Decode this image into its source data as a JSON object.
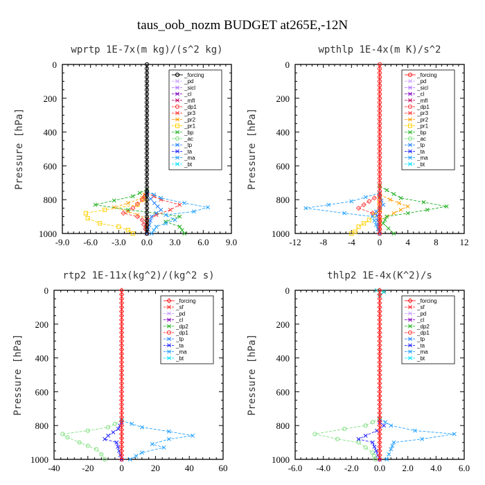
{
  "figure_title": "taus_oob_nozm  BUDGET at265E,-12N",
  "colors": {
    "forcing_black": "#000000",
    "forcing_red": "#ff2020",
    "sf": "#ff2020",
    "pd": "#c8a0ff",
    "sicl": "#b070ff",
    "cl": "#8000c0",
    "mfl": "#c00060",
    "dp1": "#ff4040",
    "pr3": "#ff3030",
    "pr2": "#ffa000",
    "pr1": "#ffd000",
    "bp": "#20b020",
    "ac": "#80e080",
    "tp": "#2080ff",
    "ta": "#2020ff",
    "ma": "#20a0ff",
    "bt": "#00e0ff",
    "dp2": "#20b020"
  },
  "chart_data": [
    {
      "id": "wprtp",
      "type": "line",
      "title": "wprtp   1E-7x(m kg)/(s^2 kg)",
      "ylabel": "Pressure [hPa]",
      "xlim": [
        -9,
        9
      ],
      "ylim": [
        1000,
        0
      ],
      "xticks": [
        "-9.0",
        "-6.0",
        "-3.0",
        "0.0",
        "3.0",
        "6.0",
        "9.0"
      ],
      "yticks": [
        "0",
        "200",
        "400",
        "600",
        "800",
        "1000"
      ],
      "legend": [
        "_forcing",
        "_pd",
        "_sicl",
        "_cl",
        "_mfl",
        "_dp1",
        "_pr3",
        "_pr2",
        "_pr1",
        "_bp",
        "_ac",
        "_tp",
        "_ta",
        "_ma",
        "_bt"
      ],
      "legend_position": "top-right",
      "series": [
        {
          "name": "_pr1",
          "color": "#ffd000",
          "marker": "square",
          "points": [
            [
              0,
              750
            ],
            [
              -0.3,
              800
            ],
            [
              -1,
              830
            ],
            [
              -4.5,
              860
            ],
            [
              -6.5,
              880
            ],
            [
              -6.3,
              910
            ],
            [
              -5,
              940
            ],
            [
              -3,
              960
            ],
            [
              -2,
              980
            ],
            [
              -1.5,
              1000
            ]
          ]
        },
        {
          "name": "_pr2",
          "color": "#ffa000",
          "marker": "x",
          "points": [
            [
              0,
              750
            ],
            [
              -0.5,
              790
            ],
            [
              -2,
              820
            ],
            [
              -3.5,
              845
            ],
            [
              -2,
              870
            ],
            [
              -1,
              890
            ],
            [
              0,
              910
            ],
            [
              0,
              1000
            ]
          ]
        },
        {
          "name": "_bp",
          "color": "#20b020",
          "marker": "x",
          "points": [
            [
              0,
              740
            ],
            [
              -1.5,
              780
            ],
            [
              -5.5,
              830
            ],
            [
              -2,
              860
            ],
            [
              1,
              880
            ],
            [
              3.5,
              900
            ],
            [
              2,
              930
            ],
            [
              3.5,
              960
            ],
            [
              4,
              1000
            ]
          ]
        },
        {
          "name": "_dp1",
          "color": "#ff4040",
          "marker": "diamond",
          "points": [
            [
              0,
              760
            ],
            [
              -0.5,
              800
            ],
            [
              -1.5,
              850
            ],
            [
              -2.5,
              880
            ],
            [
              -1,
              900
            ],
            [
              -0.5,
              920
            ],
            [
              0,
              1000
            ]
          ]
        },
        {
          "name": "_pr3",
          "color": "#ff3030",
          "marker": "x",
          "points": [
            [
              0,
              760
            ],
            [
              1.5,
              800
            ],
            [
              3.5,
              830
            ],
            [
              2.5,
              860
            ],
            [
              1,
              890
            ],
            [
              0,
              920
            ],
            [
              0,
              1000
            ]
          ]
        },
        {
          "name": "_ma",
          "color": "#20a0ff",
          "marker": "x",
          "points": [
            [
              0,
              750
            ],
            [
              1.5,
              790
            ],
            [
              4,
              820
            ],
            [
              6.5,
              845
            ],
            [
              5,
              870
            ],
            [
              2,
              890
            ],
            [
              3,
              920
            ],
            [
              1,
              960
            ],
            [
              0.5,
              1000
            ]
          ]
        },
        {
          "name": "_tp",
          "color": "#2080ff",
          "marker": "x",
          "points": [
            [
              0,
              770
            ],
            [
              0.8,
              820
            ],
            [
              1.5,
              860
            ],
            [
              0.5,
              900
            ],
            [
              0,
              1000
            ]
          ]
        },
        {
          "name": "_forcing",
          "color": "#000000",
          "marker": "circle",
          "points": [
            [
              0,
              0
            ],
            [
              0,
              1000
            ]
          ]
        }
      ]
    },
    {
      "id": "wpthlp",
      "type": "line",
      "title": "wpthlp   1E-4x(m K)/s^2",
      "ylabel": "Pressure [hPa]",
      "xlim": [
        -12,
        12
      ],
      "ylim": [
        1000,
        0
      ],
      "xticks": [
        "-12",
        "-8",
        "-4",
        "0",
        "4",
        "8",
        "12"
      ],
      "yticks": [
        "0",
        "200",
        "400",
        "600",
        "800",
        "1000"
      ],
      "legend": [
        "_forcing",
        "_pd",
        "_sicl",
        "_cl",
        "_mfl",
        "_dp1",
        "_pr3",
        "_pr2",
        "_pr1",
        "_bp",
        "_ac",
        "_tp",
        "_ta",
        "_ma",
        "_bt"
      ],
      "legend_position": "top-right",
      "series": [
        {
          "name": "_pr1",
          "color": "#ffd000",
          "marker": "square",
          "points": [
            [
              0,
              780
            ],
            [
              0,
              860
            ],
            [
              -1.5,
              920
            ],
            [
              -3,
              960
            ],
            [
              -3.5,
              990
            ],
            [
              -4,
              1000
            ]
          ]
        },
        {
          "name": "_pr2",
          "color": "#ffa000",
          "marker": "x",
          "points": [
            [
              0,
              770
            ],
            [
              1.5,
              800
            ],
            [
              4,
              840
            ],
            [
              2,
              880
            ],
            [
              0,
              920
            ],
            [
              0,
              1000
            ]
          ]
        },
        {
          "name": "_bp",
          "color": "#20b020",
          "marker": "x",
          "points": [
            [
              0,
              720
            ],
            [
              3,
              790
            ],
            [
              9.5,
              840
            ],
            [
              4,
              880
            ],
            [
              1,
              900
            ],
            [
              0.5,
              940
            ],
            [
              2,
              1000
            ]
          ]
        },
        {
          "name": "_dp1",
          "color": "#ff4040",
          "marker": "diamond",
          "points": [
            [
              0,
              770
            ],
            [
              -1.5,
              810
            ],
            [
              -3,
              850
            ],
            [
              -1,
              880
            ],
            [
              0,
              900
            ],
            [
              0,
              1000
            ]
          ]
        },
        {
          "name": "_ma",
          "color": "#20a0ff",
          "marker": "x",
          "points": [
            [
              0,
              760
            ],
            [
              -4,
              810
            ],
            [
              -10.5,
              850
            ],
            [
              -5,
              880
            ],
            [
              -1,
              900
            ],
            [
              0,
              1000
            ]
          ]
        },
        {
          "name": "_tp",
          "color": "#2080ff",
          "marker": "x",
          "points": [
            [
              0,
              780
            ],
            [
              0.5,
              830
            ],
            [
              -0.5,
              870
            ],
            [
              0,
              1000
            ]
          ]
        },
        {
          "name": "_forcing",
          "color": "#ff2020",
          "marker": "circle",
          "points": [
            [
              0,
              0
            ],
            [
              0,
              1000
            ]
          ]
        }
      ]
    },
    {
      "id": "rtp2",
      "type": "line",
      "title": "rtp2   1E-11x(kg^2)/(kg^2 s)",
      "ylabel": "Pressure [hPa]",
      "xlim": [
        -40,
        60
      ],
      "ylim": [
        1000,
        0
      ],
      "xticks": [
        "-40",
        "-20",
        "0",
        "20",
        "40",
        "60"
      ],
      "yticks": [
        "0",
        "200",
        "400",
        "600",
        "800",
        "1000"
      ],
      "legend": [
        "_forcing",
        "_sf",
        "_pd",
        "_cl",
        "_dp2",
        "_dp1",
        "_tp",
        "_ta",
        "_ma",
        "_bt"
      ],
      "legend_position": "top-right",
      "series": [
        {
          "name": "_dp1",
          "color": "#80e080",
          "marker": "circle",
          "points": [
            [
              0,
              770
            ],
            [
              -8,
              810
            ],
            [
              -20,
              830
            ],
            [
              -35,
              850
            ],
            [
              -32,
              870
            ],
            [
              -25,
              900
            ],
            [
              -15,
              940
            ],
            [
              -12,
              970
            ],
            [
              -10,
              1000
            ]
          ]
        },
        {
          "name": "_ta",
          "color": "#2020ff",
          "marker": "x",
          "points": [
            [
              0,
              780
            ],
            [
              -2,
              820
            ],
            [
              -8,
              860
            ],
            [
              -10,
              880
            ],
            [
              -3,
              900
            ],
            [
              0,
              1000
            ]
          ]
        },
        {
          "name": "_ma",
          "color": "#20a0ff",
          "marker": "x",
          "points": [
            [
              0,
              770
            ],
            [
              12,
              810
            ],
            [
              28,
              835
            ],
            [
              42,
              860
            ],
            [
              28,
              880
            ],
            [
              18,
              910
            ],
            [
              25,
              930
            ],
            [
              12,
              960
            ],
            [
              5,
              1000
            ]
          ]
        },
        {
          "name": "_forcing",
          "color": "#ff2020",
          "marker": "diamond",
          "points": [
            [
              0,
              0
            ],
            [
              0,
              1000
            ]
          ]
        }
      ]
    },
    {
      "id": "thlp2",
      "type": "line",
      "title": "thlp2   1E-4x(K^2)/s",
      "ylabel": "Pressure [hPa]",
      "xlim": [
        -6,
        6
      ],
      "ylim": [
        1000,
        0
      ],
      "xticks": [
        "-6.0",
        "-4.0",
        "-2.0",
        "0.0",
        "2.0",
        "4.0",
        "6.0"
      ],
      "yticks": [
        "0",
        "200",
        "400",
        "600",
        "800",
        "1000"
      ],
      "legend": [
        "_forcing",
        "_sf",
        "_pd",
        "_cl",
        "_dp2",
        "_dp1",
        "_tp",
        "_ta",
        "_ma",
        "_bt"
      ],
      "legend_position": "top-right",
      "series": [
        {
          "name": "_dp1",
          "color": "#80e080",
          "marker": "circle",
          "points": [
            [
              0,
              760
            ],
            [
              -1,
              800
            ],
            [
              -2.5,
              820
            ],
            [
              -4.6,
              850
            ],
            [
              -3,
              880
            ],
            [
              -1.5,
              900
            ],
            [
              -0.5,
              960
            ],
            [
              -0.3,
              1000
            ]
          ]
        },
        {
          "name": "_ta",
          "color": "#2020ff",
          "marker": "x",
          "points": [
            [
              0,
              780
            ],
            [
              0.3,
              800
            ],
            [
              -0.2,
              830
            ],
            [
              -1,
              860
            ],
            [
              -1.5,
              880
            ],
            [
              -0.5,
              900
            ],
            [
              0,
              1000
            ]
          ]
        },
        {
          "name": "_ma",
          "color": "#20a0ff",
          "marker": "x",
          "points": [
            [
              0,
              760
            ],
            [
              0.8,
              800
            ],
            [
              2.5,
              830
            ],
            [
              5.3,
              850
            ],
            [
              3,
              880
            ],
            [
              1,
              900
            ],
            [
              0.8,
              940
            ],
            [
              0.5,
              1000
            ]
          ]
        },
        {
          "name": "_pd",
          "color": "#00c0c0",
          "marker": "x",
          "points": [
            [
              -0.2,
              0
            ],
            [
              0.3,
              10
            ],
            [
              0,
              30
            ]
          ]
        },
        {
          "name": "_forcing",
          "color": "#ff2020",
          "marker": "diamond",
          "points": [
            [
              0,
              0
            ],
            [
              0,
              1000
            ]
          ]
        }
      ]
    }
  ]
}
